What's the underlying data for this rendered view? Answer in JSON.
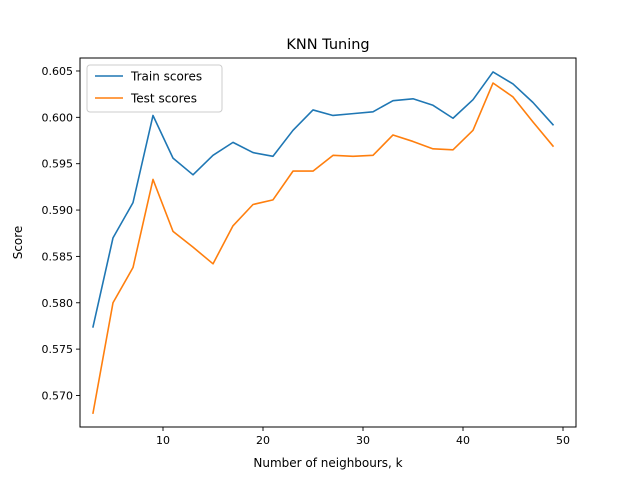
{
  "chart_data": {
    "type": "line",
    "title": "KNN Tuning",
    "xlabel": "Number of neighbours, k",
    "ylabel": "Score",
    "xlim": [
      1.7,
      51.3
    ],
    "ylim": [
      0.5666,
      0.6064
    ],
    "xticks": [
      10,
      20,
      30,
      40,
      50
    ],
    "yticks": [
      0.57,
      0.575,
      0.58,
      0.585,
      0.59,
      0.595,
      0.6,
      0.605
    ],
    "ytick_labels": [
      "0.570",
      "0.575",
      "0.580",
      "0.585",
      "0.590",
      "0.595",
      "0.600",
      "0.605"
    ],
    "grid": false,
    "legend_position": "top-left",
    "x": [
      3,
      5,
      7,
      9,
      11,
      13,
      15,
      17,
      19,
      21,
      23,
      25,
      27,
      29,
      31,
      33,
      35,
      37,
      39,
      41,
      43,
      45,
      47,
      49
    ],
    "series": [
      {
        "name": "Train scores",
        "color": "#1f77b4",
        "values": [
          0.5774,
          0.587,
          0.5908,
          0.6002,
          0.5956,
          0.5938,
          0.5959,
          0.5973,
          0.5962,
          0.5958,
          0.5986,
          0.6008,
          0.6002,
          0.6004,
          0.6006,
          0.6018,
          0.602,
          0.6013,
          0.5999,
          0.6019,
          0.6049,
          0.6036,
          0.6016,
          0.5992
        ]
      },
      {
        "name": "Test scores",
        "color": "#ff7f0e",
        "values": [
          0.5681,
          0.58,
          0.5838,
          0.5933,
          0.5877,
          0.586,
          0.5842,
          0.5883,
          0.5906,
          0.5911,
          0.5942,
          0.5942,
          0.5959,
          0.5958,
          0.5959,
          0.5981,
          0.5974,
          0.5966,
          0.5965,
          0.5986,
          0.6037,
          0.6022,
          0.5995,
          0.5969
        ]
      }
    ]
  }
}
